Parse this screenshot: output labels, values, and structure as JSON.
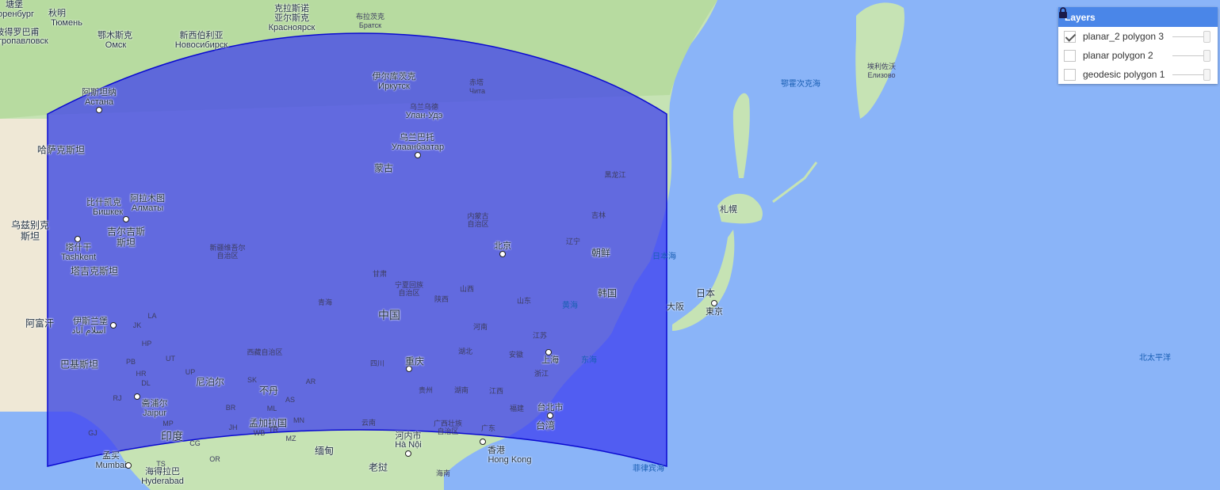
{
  "layers_panel": {
    "title": "Layers",
    "lock_icon": "lock-icon",
    "items": [
      {
        "label": "planar_2 polygon 3",
        "checked": true,
        "opacity": 1.0
      },
      {
        "label": "planar polygon 2",
        "checked": false,
        "opacity": 1.0
      },
      {
        "label": "geodesic polygon 1",
        "checked": false,
        "opacity": 1.0
      }
    ]
  },
  "colors": {
    "ocean": "#8ab4f8",
    "land": "#c6e3b4",
    "polygon_fill": "#3c3cf0",
    "polygon_stroke": "#0a0ad0",
    "header": "#4a86e8"
  },
  "map_labels": {
    "chn": "中国",
    "mng": "蒙古",
    "kaz": "哈萨克斯坦",
    "kgz": "吉尔吉斯斯坦",
    "tjk": "塔吉克斯坦",
    "uzb": "乌兹别克斯坦",
    "afg": "阿富汗",
    "pak": "巴基斯坦",
    "ind": "印度",
    "npl": "尼泊尔",
    "btn": "不丹",
    "bgd": "孟加拉国",
    "mmr": "缅甸",
    "lao": "老挝",
    "jpn": "日本",
    "prk": "朝鲜",
    "kor": "韩国",
    "sea_okhotsk": "鄂霍次克海",
    "sea_japan": "日本海",
    "sea_yellow": "黄海",
    "sea_east": "东海",
    "pacific": "北太平洋",
    "philippine_sea": "菲律宾海",
    "beijing": "北京",
    "shanghai": "上海",
    "chongqing": "重庆",
    "tokyo": "東京",
    "osaka": "大阪",
    "sapporo": "札幌",
    "hongkong_zh": "香港",
    "hongkong_en": "Hong Kong",
    "hanoi_zh": "河内市",
    "hanoi_vn": "Hà Nội",
    "taipei": "台北市",
    "taiwan": "台湾",
    "hainan": "海南",
    "ulaanbaatar_zh": "乌兰巴托",
    "ulaanbaatar_mn": "Улаанбаатар",
    "irkutsk_zh": "伊尔库茨克",
    "irkutsk_ru": "Иркутск",
    "ulanude_zh": "乌兰乌德",
    "ulanude_ru": "Улан-Удэ",
    "chita_zh": "赤塔",
    "chita_ru": "Чита",
    "astana_zh": "阿斯坦纳",
    "astana_kz": "Астана",
    "almaty_zh": "阿拉木图",
    "almaty_kz": "Алматы",
    "bishkek_zh": "比什凯克",
    "bishkek_kg": "Бишкек",
    "tashkent_zh": "塔什干",
    "tashkent_uz": "Tashkent",
    "islamabad_zh": "伊斯兰堡",
    "islamabad_ur": "اسلام آباد",
    "jaipur_zh": "斋浦尔",
    "jaipur_en": "Jaipur",
    "mumbai_zh": "孟买",
    "mumbai_en": "Mumbai",
    "hyderabad_zh": "海得拉巴",
    "hyderabad_en": "Hyderabad",
    "omsk_zh": "鄂木斯克",
    "omsk_ru": "Омск",
    "novosibirsk_zh": "新西伯利亚",
    "novosibirsk_ru": "Новосибирск",
    "krasnoyarsk_zh": "克拉斯诺",
    "krasnoyarsk_zh2": "亚尔斯克",
    "krasnoyarsk_ru": "Красноярск",
    "bratsk_zh": "布拉茨克",
    "bratsk_ru": "Братск",
    "tyumen_zh": "秋明",
    "tyumen_ru": "Тюмень",
    "petro_zh": "彼得罗巴甫",
    "petro_zh2": "洛夫斯克",
    "petro_kz": "Петропавловск",
    "elizovo_zh": "埃利佐沃",
    "elizovo_ru": "Елизово",
    "orenburg_partial": "оренбург",
    "orenburg_zh": "塘堡",
    "xinjiang": "新疆维吾尔",
    "xinjiang2": "自治区",
    "tibet": "西藏自治区",
    "qinghai": "青海",
    "gansu": "甘肃",
    "ningxia": "宁夏回族",
    "ningxia2": "自治区",
    "inner_mongolia": "内蒙古",
    "inner_mongolia2": "自治区",
    "heilongjiang": "黑龙江",
    "jilin": "吉林",
    "liaoning": "辽宁",
    "shanxi": "山西",
    "shaanxi": "陕西",
    "shandong": "山东",
    "henan": "河南",
    "jiangsu": "江苏",
    "anhui": "安徽",
    "hubei": "湖北",
    "sichuan": "四川",
    "zhejiang": "浙江",
    "jiangxi": "江西",
    "hunan": "湖南",
    "guizhou": "贵州",
    "fujian": "福建",
    "yunnan": "云南",
    "guangxi": "广西壮族",
    "guangxi2": "自治区",
    "guangdong": "广东",
    "jk": "JK",
    "hp": "HP",
    "pb": "PB",
    "hr": "HR",
    "up": "UP",
    "rj": "RJ",
    "mp": "MP",
    "gj": "GJ",
    "br": "BR",
    "jh": "JH",
    "wb": "WB",
    "cg": "CG",
    "or": "OR",
    "ts": "TS",
    "ml": "ML",
    "mn": "MN",
    "mz": "MZ",
    "tr": "TR",
    "as": "AS",
    "sk": "SK",
    "ar": "AR",
    "ut": "UT",
    "dl": "DL",
    "la": "LA"
  }
}
